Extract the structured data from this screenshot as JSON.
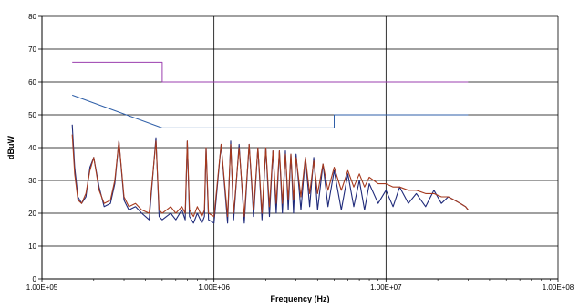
{
  "chart_data": {
    "type": "line",
    "title": "",
    "xlabel": "Frequency (Hz)",
    "ylabel": "dBuW",
    "x_scale": "log",
    "xlim": [
      100000,
      100000000
    ],
    "ylim": [
      0,
      80
    ],
    "y_ticks": [
      0,
      10,
      20,
      30,
      40,
      50,
      60,
      70,
      80
    ],
    "x_ticks": [
      100000,
      1000000,
      10000000,
      100000000
    ],
    "x_tick_labels": [
      "1.00E+05",
      "1.00E+06",
      "1.00E+07",
      "1.00E+08"
    ],
    "grid": "major",
    "legend": "none",
    "series": [
      {
        "color": "#9B3FAF",
        "x": [
          150000,
          500000,
          500000,
          30000000
        ],
        "y": [
          66,
          66,
          60,
          60
        ]
      },
      {
        "color": "#2F5FA8",
        "x": [
          150000,
          500000,
          5000000,
          5000000,
          30000000
        ],
        "y": [
          56,
          46,
          46,
          50,
          50
        ]
      },
      {
        "color": "#1F2A7A",
        "x": [
          150000,
          155000,
          162000,
          170000,
          180000,
          190000,
          200000,
          215000,
          230000,
          250000,
          265000,
          280000,
          300000,
          320000,
          350000,
          380000,
          420000,
          460000,
          480000,
          500000,
          530000,
          560000,
          600000,
          650000,
          680000,
          700000,
          720000,
          760000,
          800000,
          850000,
          880000,
          900000,
          930000,
          1000000,
          1100000,
          1200000,
          1250000,
          1300000,
          1400000,
          1500000,
          1600000,
          1700000,
          1800000,
          1900000,
          2000000,
          2100000,
          2200000,
          2300000,
          2400000,
          2500000,
          2600000,
          2700000,
          2800000,
          2900000,
          3000000,
          3200000,
          3400000,
          3600000,
          3800000,
          4000000,
          4300000,
          4600000,
          5000000,
          5500000,
          6000000,
          6500000,
          7000000,
          7500000,
          8000000,
          9000000,
          10000000,
          11000000,
          12000000,
          13500000,
          15000000,
          17000000,
          19000000,
          21000000,
          23000000,
          25000000,
          27000000,
          29000000,
          30000000
        ],
        "y": [
          47,
          34,
          25,
          23,
          25,
          34,
          37,
          28,
          22,
          23,
          29,
          42,
          24,
          21,
          22,
          20,
          18,
          43,
          19,
          18,
          19,
          20,
          18,
          21,
          18,
          42,
          19,
          17,
          20,
          17,
          19,
          40,
          18,
          17,
          41,
          17,
          42,
          18,
          41,
          17,
          41,
          19,
          40,
          18,
          40,
          19,
          39,
          20,
          39,
          20,
          39,
          21,
          38,
          20,
          38,
          21,
          37,
          22,
          37,
          21,
          35,
          22,
          33,
          21,
          32,
          22,
          30,
          21,
          29,
          23,
          27,
          22,
          28,
          23,
          26,
          22,
          27,
          23,
          25,
          24,
          23,
          22,
          21
        ]
      },
      {
        "color": "#A63A1E",
        "x": [
          150000,
          155000,
          162000,
          170000,
          180000,
          190000,
          200000,
          215000,
          230000,
          250000,
          265000,
          280000,
          300000,
          320000,
          350000,
          380000,
          420000,
          460000,
          480000,
          500000,
          530000,
          560000,
          600000,
          650000,
          680000,
          700000,
          720000,
          760000,
          800000,
          850000,
          880000,
          900000,
          930000,
          1000000,
          1100000,
          1200000,
          1250000,
          1300000,
          1400000,
          1500000,
          1600000,
          1700000,
          1800000,
          1900000,
          2000000,
          2100000,
          2200000,
          2300000,
          2400000,
          2500000,
          2600000,
          2700000,
          2800000,
          2900000,
          3000000,
          3200000,
          3400000,
          3600000,
          3800000,
          4000000,
          4300000,
          4600000,
          5000000,
          5500000,
          6000000,
          6500000,
          7000000,
          7500000,
          8000000,
          9000000,
          10000000,
          11000000,
          12000000,
          13500000,
          15000000,
          17000000,
          19000000,
          21000000,
          23000000,
          25000000,
          27000000,
          29000000,
          30000000
        ],
        "y": [
          44,
          32,
          24,
          23,
          26,
          33,
          37,
          27,
          23,
          24,
          30,
          42,
          25,
          22,
          23,
          21,
          20,
          42,
          21,
          20,
          21,
          22,
          20,
          22,
          20,
          42,
          21,
          19,
          22,
          19,
          21,
          40,
          20,
          19,
          41,
          19,
          41,
          20,
          40,
          19,
          41,
          21,
          40,
          20,
          40,
          22,
          39,
          23,
          39,
          23,
          38,
          24,
          38,
          24,
          37,
          25,
          37,
          26,
          36,
          26,
          35,
          27,
          34,
          27,
          33,
          28,
          32,
          28,
          31,
          29,
          29,
          28,
          28,
          27,
          27,
          26,
          26,
          25,
          25,
          24,
          23,
          22,
          21
        ]
      }
    ]
  }
}
